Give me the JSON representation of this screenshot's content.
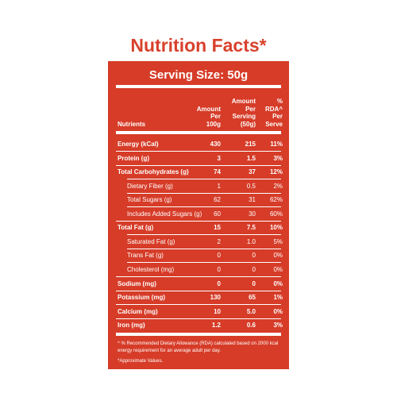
{
  "title": "Nutrition Facts*",
  "serving_size": "Serving Size: 50g",
  "table": {
    "headers": [
      [
        "Nutrients"
      ],
      [
        "Amount",
        "Per",
        "100g"
      ],
      [
        "Amount",
        "Per",
        "Serving",
        "(50g)"
      ],
      [
        "%",
        "RDA^",
        "Per",
        "Serve"
      ]
    ],
    "rows": [
      {
        "cells": [
          "Energy (kCal)",
          "430",
          "215",
          "11%"
        ],
        "sub": false
      },
      {
        "cells": [
          "Protein (g)",
          "3",
          "1.5",
          "3%"
        ],
        "sub": false
      },
      {
        "cells": [
          "Total Carbohydrates (g)",
          "74",
          "37",
          "12%"
        ],
        "sub": false
      },
      {
        "cells": [
          "Dietary Fiber (g)",
          "1",
          "0.5",
          "2%"
        ],
        "sub": true
      },
      {
        "cells": [
          "Total Sugars (g)",
          "62",
          "31",
          "62%"
        ],
        "sub": true
      },
      {
        "cells": [
          "Includes Added Sugars (g)",
          "60",
          "30",
          "60%"
        ],
        "sub": true
      },
      {
        "cells": [
          "Total Fat (g)",
          "15",
          "7.5",
          "10%"
        ],
        "sub": false
      },
      {
        "cells": [
          "Saturated Fat (g)",
          "2",
          "1.0",
          "5%"
        ],
        "sub": true
      },
      {
        "cells": [
          "Trans Fat (g)",
          "0",
          "0",
          "0%"
        ],
        "sub": true
      },
      {
        "cells": [
          "Cholesterol (mg)",
          "0",
          "0",
          "0%"
        ],
        "sub": true
      },
      {
        "cells": [
          "Sodium (mg)",
          "0",
          "0",
          "0%"
        ],
        "sub": false
      },
      {
        "cells": [
          "Potassium  (mg)",
          "130",
          "65",
          "1%"
        ],
        "sub": false
      },
      {
        "cells": [
          "Calcium (mg)",
          "10",
          "5.0",
          "0%"
        ],
        "sub": false
      },
      {
        "cells": [
          "Iron (mg)",
          "1.2",
          "0.6",
          "3%"
        ],
        "sub": false
      }
    ]
  },
  "footnotes": [
    "^ % Recommended Dietary Allowance (RDA) calculated based on 2000 kcal energy requirement for an average adult per day.",
    "*Approximate Values."
  ]
}
